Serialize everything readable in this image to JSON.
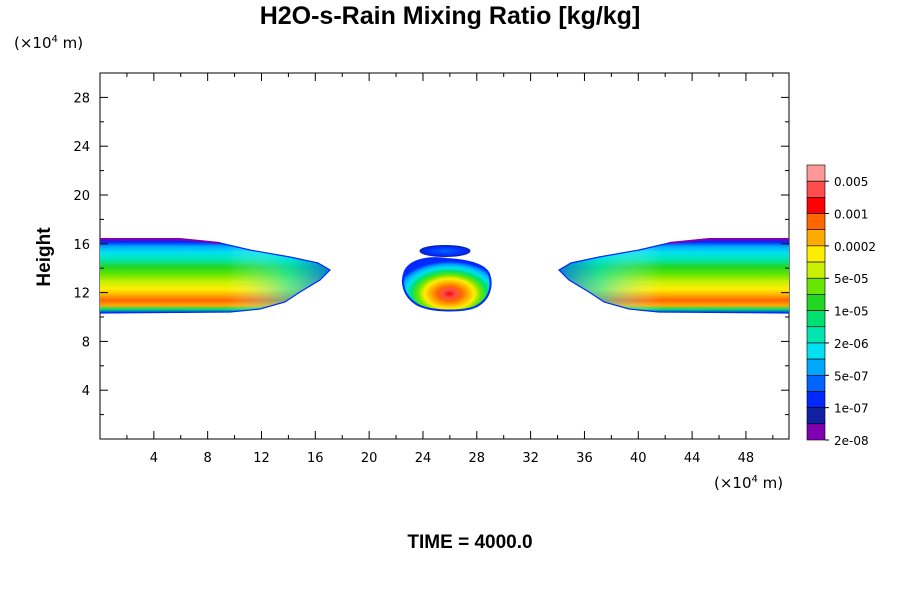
{
  "title": "H2O-s-Rain Mixing Ratio [kg/kg]",
  "time_label": "TIME = 4000.0",
  "unit_top": {
    "prefix": "(×10",
    "exp": "4",
    "suffix": " m)"
  },
  "unit_bottom": {
    "prefix": "(×10",
    "exp": "4",
    "suffix": " m)"
  },
  "chart_data": {
    "type": "heatmap",
    "title": "H2O-s-Rain Mixing Ratio [kg/kg]",
    "ylabel": "Height",
    "xlim": [
      0,
      51.2
    ],
    "ylim": [
      0,
      30
    ],
    "x_ticks": [
      4,
      8,
      12,
      16,
      20,
      24,
      28,
      32,
      36,
      40,
      44,
      48
    ],
    "y_ticks": [
      4,
      8,
      12,
      16,
      20,
      24,
      28
    ],
    "legend_position": "right",
    "colorbar": {
      "labels": [
        "0.005",
        "0.001",
        "0.0002",
        "5e-05",
        "1e-05",
        "2e-06",
        "5e-07",
        "1e-07",
        "2e-08"
      ],
      "colors": [
        "#ff9999",
        "#ff4d4d",
        "#ff0000",
        "#ff6600",
        "#ffaa00",
        "#ffee00",
        "#c8f000",
        "#66e600",
        "#22d622",
        "#00e070",
        "#00e6b0",
        "#00e0f0",
        "#00a8ff",
        "#0064ff",
        "#0028ff",
        "#1020a0",
        "#8000b0"
      ]
    },
    "regions": [
      {
        "name": "left-layer",
        "x_range": [
          0,
          17.2
        ],
        "y_range": [
          10.5,
          16.2
        ]
      },
      {
        "name": "center-cell",
        "x_range": [
          22.5,
          28.5
        ],
        "y_range": [
          10.7,
          14.5
        ]
      },
      {
        "name": "upper-cell",
        "x_range": [
          23.7,
          27.2
        ],
        "y_range": [
          15.0,
          15.9
        ]
      },
      {
        "name": "right-layer",
        "x_range": [
          34,
          51.2
        ],
        "y_range": [
          10.5,
          16.2
        ]
      }
    ]
  }
}
